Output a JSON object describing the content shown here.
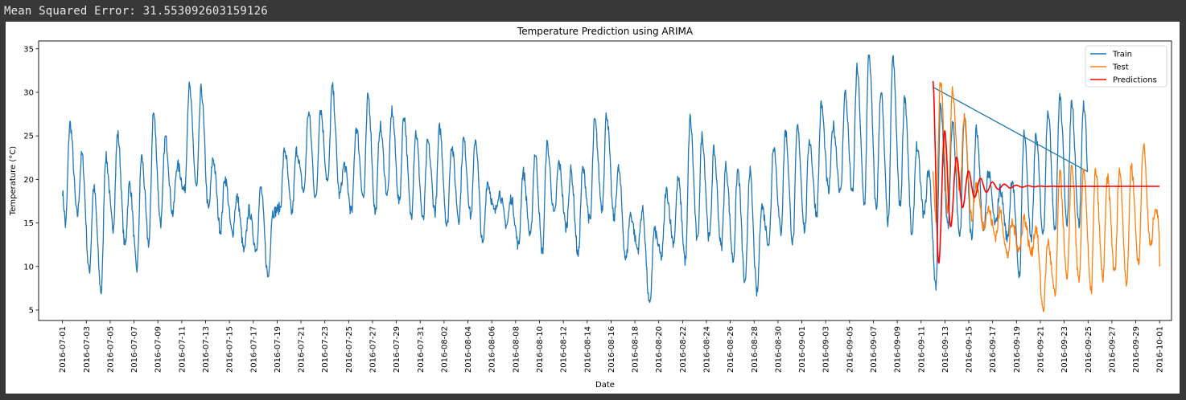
{
  "console": {
    "output_text": "Mean Squared Error: 31.553092603159126"
  },
  "chart_data": {
    "type": "line",
    "title": "Temperature Prediction using ARIMA",
    "xlabel": "Date",
    "ylabel": "Temperature (°C)",
    "xlim": [
      "2016-06-29",
      "2016-10-02"
    ],
    "ylim": [
      3.8,
      35.9
    ],
    "yticks": [
      5,
      10,
      15,
      20,
      25,
      30,
      35
    ],
    "xticks": [
      "2016-07-01",
      "2016-07-03",
      "2016-07-05",
      "2016-07-07",
      "2016-07-09",
      "2016-07-11",
      "2016-07-13",
      "2016-07-15",
      "2016-07-17",
      "2016-07-19",
      "2016-07-21",
      "2016-07-23",
      "2016-07-25",
      "2016-07-27",
      "2016-07-29",
      "2016-07-31",
      "2016-08-02",
      "2016-08-04",
      "2016-08-06",
      "2016-08-08",
      "2016-08-10",
      "2016-08-12",
      "2016-08-14",
      "2016-08-16",
      "2016-08-18",
      "2016-08-20",
      "2016-08-22",
      "2016-08-24",
      "2016-08-26",
      "2016-08-28",
      "2016-08-30",
      "2016-09-01",
      "2016-09-03",
      "2016-09-05",
      "2016-09-07",
      "2016-09-09",
      "2016-09-11",
      "2016-09-13",
      "2016-09-15",
      "2016-09-17",
      "2016-09-19",
      "2016-09-21",
      "2016-09-23",
      "2016-09-25",
      "2016-09-27",
      "2016-09-29",
      "2016-10-01"
    ],
    "grid": false,
    "legend_position": "top-right",
    "colors": {
      "train": "#1f77b4",
      "test": "#ff7f0e",
      "predictions": "#ff0000"
    },
    "series": [
      {
        "name": "Train",
        "color": "#1f77b4",
        "start": "2016-07-01",
        "daily": [
          {
            "min": 14.7,
            "max": 26.4
          },
          {
            "min": 15.9,
            "max": 22.8
          },
          {
            "min": 9.4,
            "max": 19.0
          },
          {
            "min": 7.1,
            "max": 22.6
          },
          {
            "min": 14.5,
            "max": 25.2
          },
          {
            "min": 12.4,
            "max": 19.5
          },
          {
            "min": 9.7,
            "max": 22.6
          },
          {
            "min": 12.6,
            "max": 27.6
          },
          {
            "min": 15.0,
            "max": 24.8
          },
          {
            "min": 16.1,
            "max": 21.7
          },
          {
            "min": 18.7,
            "max": 30.6
          },
          {
            "min": 19.0,
            "max": 30.3
          },
          {
            "min": 16.5,
            "max": 22.4
          },
          {
            "min": 14.2,
            "max": 20.2
          },
          {
            "min": 13.8,
            "max": 18.0
          },
          {
            "min": 11.7,
            "max": 16.5
          },
          {
            "min": 12.0,
            "max": 19.0
          },
          {
            "min": 8.8,
            "max": 16.2
          },
          {
            "min": 16.7,
            "max": 23.4
          },
          {
            "min": 16.2,
            "max": 23.3
          },
          {
            "min": 18.6,
            "max": 27.7
          },
          {
            "min": 17.7,
            "max": 28.1
          },
          {
            "min": 19.6,
            "max": 30.6
          },
          {
            "min": 18.1,
            "max": 21.7
          },
          {
            "min": 16.2,
            "max": 26.0
          },
          {
            "min": 17.9,
            "max": 29.6
          },
          {
            "min": 16.1,
            "max": 26.1
          },
          {
            "min": 18.2,
            "max": 27.9
          },
          {
            "min": 17.3,
            "max": 27.4
          },
          {
            "min": 15.8,
            "max": 25.4
          },
          {
            "min": 15.2,
            "max": 24.3
          },
          {
            "min": 16.3,
            "max": 25.9
          },
          {
            "min": 14.6,
            "max": 23.9
          },
          {
            "min": 15.5,
            "max": 24.6
          },
          {
            "min": 15.8,
            "max": 24.7
          },
          {
            "min": 12.4,
            "max": 19.7
          },
          {
            "min": 16.2,
            "max": 18.5
          },
          {
            "min": 14.8,
            "max": 17.8
          },
          {
            "min": 12.4,
            "max": 20.9
          },
          {
            "min": 13.3,
            "max": 23.0
          },
          {
            "min": 11.6,
            "max": 24.0
          },
          {
            "min": 15.8,
            "max": 21.9
          },
          {
            "min": 14.4,
            "max": 21.0
          },
          {
            "min": 11.3,
            "max": 21.2
          },
          {
            "min": 15.1,
            "max": 26.7
          },
          {
            "min": 16.7,
            "max": 27.5
          },
          {
            "min": 15.5,
            "max": 21.2
          },
          {
            "min": 10.8,
            "max": 16.0
          },
          {
            "min": 12.0,
            "max": 16.5
          },
          {
            "min": 5.4,
            "max": 14.1
          },
          {
            "min": 11.1,
            "max": 18.7
          },
          {
            "min": 12.8,
            "max": 20.0
          },
          {
            "min": 10.6,
            "max": 27.0
          },
          {
            "min": 12.8,
            "max": 25.0
          },
          {
            "min": 13.1,
            "max": 23.3
          },
          {
            "min": 12.2,
            "max": 21.5
          },
          {
            "min": 10.7,
            "max": 21.1
          },
          {
            "min": 7.8,
            "max": 21.0
          },
          {
            "min": 6.9,
            "max": 17.0
          },
          {
            "min": 12.7,
            "max": 24.0
          },
          {
            "min": 14.0,
            "max": 25.6
          },
          {
            "min": 12.7,
            "max": 26.0
          },
          {
            "min": 14.2,
            "max": 24.6
          },
          {
            "min": 16.0,
            "max": 28.6
          },
          {
            "min": 18.6,
            "max": 26.2
          },
          {
            "min": 18.4,
            "max": 30.0
          },
          {
            "min": 18.2,
            "max": 32.7
          },
          {
            "min": 17.1,
            "max": 34.4
          },
          {
            "min": 16.6,
            "max": 30.2
          },
          {
            "min": 15.0,
            "max": 33.9
          },
          {
            "min": 16.9,
            "max": 29.5
          },
          {
            "min": 13.4,
            "max": 23.8
          },
          {
            "min": 15.9,
            "max": 21.0
          },
          {
            "min": 7.8,
            "max": 28.2
          },
          {
            "min": 14.6,
            "max": 26.5
          },
          {
            "min": 13.5,
            "max": 27.2
          },
          {
            "min": 13.2,
            "max": 25.7
          },
          {
            "min": 13.8,
            "max": 20.8
          },
          {
            "min": 14.8,
            "max": 18.9
          },
          {
            "min": 13.2,
            "max": 20.1
          },
          {
            "min": 9.0,
            "max": 25.4
          },
          {
            "min": 12.8,
            "max": 25.0
          },
          {
            "min": 13.7,
            "max": 28.1
          },
          {
            "min": 14.3,
            "max": 29.5
          },
          {
            "min": 15.2,
            "max": 29.0
          },
          {
            "min": 14.8,
            "max": 28.7
          }
        ],
        "end": {
          "date": "2016-09-12",
          "value": 30.6
        }
      },
      {
        "name": "Test",
        "color": "#ff7f0e",
        "start": "2016-09-12",
        "daily": [
          {
            "min": 15.0,
            "max": 31.2
          },
          {
            "min": 16.5,
            "max": 30.4
          },
          {
            "min": 18.3,
            "max": 27.4
          },
          {
            "min": 15.5,
            "max": 19.5
          },
          {
            "min": 14.7,
            "max": 16.6
          },
          {
            "min": 13.5,
            "max": 16.3
          },
          {
            "min": 11.2,
            "max": 15.0
          },
          {
            "min": 11.9,
            "max": 15.6
          },
          {
            "min": 11.5,
            "max": 14.5
          },
          {
            "min": 5.1,
            "max": 12.8
          },
          {
            "min": 6.6,
            "max": 20.6
          },
          {
            "min": 8.3,
            "max": 21.7
          },
          {
            "min": 8.0,
            "max": 21.4
          },
          {
            "min": 7.0,
            "max": 21.0
          },
          {
            "min": 8.7,
            "max": 20.1
          },
          {
            "min": 9.2,
            "max": 21.2
          },
          {
            "min": 8.1,
            "max": 21.6
          },
          {
            "min": 10.2,
            "max": 24.0
          },
          {
            "min": 12.2,
            "max": 16.8
          }
        ],
        "end": {
          "date": "2016-10-01",
          "value": 10.0
        }
      },
      {
        "name": "Predictions",
        "color": "#ff0000",
        "start": "2016-09-12",
        "initial_value": 31.3,
        "trough_value": 15.2,
        "first_peak_value": 25.5,
        "settle_value": 19.2,
        "end": {
          "date": "2016-10-01",
          "value": 19.2
        }
      }
    ]
  }
}
